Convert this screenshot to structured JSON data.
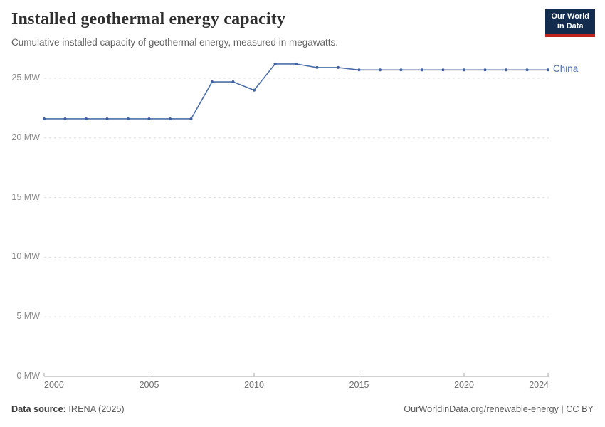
{
  "header": {
    "title": "Installed geothermal energy capacity",
    "subtitle": "Cumulative installed capacity of geothermal energy, measured in megawatts.",
    "logo": {
      "line1": "Our World",
      "line2": "in Data"
    }
  },
  "chart_data": {
    "type": "line",
    "title": "Installed geothermal energy capacity",
    "unit": "MW",
    "x": [
      2000,
      2001,
      2002,
      2003,
      2004,
      2005,
      2006,
      2007,
      2008,
      2009,
      2010,
      2011,
      2012,
      2013,
      2014,
      2015,
      2016,
      2017,
      2018,
      2019,
      2020,
      2021,
      2022,
      2023,
      2024
    ],
    "series": [
      {
        "name": "China",
        "values": [
          21.6,
          21.6,
          21.6,
          21.6,
          21.6,
          21.6,
          21.6,
          21.6,
          24.7,
          24.7,
          24.0,
          26.2,
          26.2,
          25.9,
          25.9,
          25.7,
          25.7,
          25.7,
          25.7,
          25.7,
          25.7,
          25.7,
          25.7,
          25.7,
          25.7
        ]
      }
    ],
    "xlim": [
      2000,
      2024
    ],
    "ylim": [
      0,
      25
    ],
    "xticks": [
      2000,
      2005,
      2010,
      2015,
      2020,
      2024
    ],
    "yticks": [
      {
        "value": 0,
        "label": "0 MW"
      },
      {
        "value": 5,
        "label": "5 MW"
      },
      {
        "value": 10,
        "label": "10 MW"
      },
      {
        "value": 15,
        "label": "15 MW"
      },
      {
        "value": 20,
        "label": "20 MW"
      },
      {
        "value": 25,
        "label": "25 MW"
      }
    ],
    "grid": "horizontal dashed",
    "legend_position": "end-of-line label"
  },
  "colors": {
    "line": "#4d6fa8",
    "point": "#40609e",
    "series_label": "#4a6da5",
    "grid": "#dedede",
    "axis": "#a3a3a3",
    "logo_bg": "#132b4d",
    "logo_bar": "#c0231d"
  },
  "footer": {
    "data_source_label": "Data source:",
    "data_source_value": " IRENA (2025)",
    "credit": "OurWorldinData.org/renewable-energy | CC BY"
  }
}
